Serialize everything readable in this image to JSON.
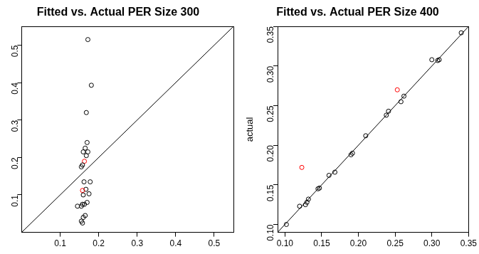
{
  "chart_data": [
    {
      "type": "scatter",
      "title": "Fitted vs. Actual PER Size 300",
      "xlim": [
        0,
        0.55
      ],
      "ylim": [
        0,
        0.55
      ],
      "xticks": [
        0.1,
        0.2,
        0.3,
        0.4,
        0.5
      ],
      "yticks": [
        0.1,
        0.2,
        0.3,
        0.4,
        0.5
      ],
      "grid": false,
      "series": [
        {
          "type": "scatter",
          "marker": "open_circle",
          "x": [
            0.172,
            0.181,
            0.168,
            0.17,
            0.165,
            0.172,
            0.16,
            0.168,
            0.163,
            0.155,
            0.158,
            0.178,
            0.162,
            0.167,
            0.158,
            0.175,
            0.16,
            0.17,
            0.158,
            0.163,
            0.145,
            0.155,
            0.165,
            0.16,
            0.155,
            0.158
          ],
          "values": [
            0.515,
            0.393,
            0.32,
            0.24,
            0.225,
            0.215,
            0.215,
            0.205,
            0.19,
            0.175,
            0.18,
            0.135,
            0.135,
            0.115,
            0.112,
            0.103,
            0.1,
            0.08,
            0.075,
            0.075,
            0.07,
            0.07,
            0.045,
            0.04,
            0.03,
            0.025
          ],
          "colors": [
            "#000000",
            "#000000",
            "#000000",
            "#000000",
            "#000000",
            "#000000",
            "#000000",
            "#000000",
            "#ff0000",
            "#000000",
            "#000000",
            "#000000",
            "#000000",
            "#000000",
            "#ff0000",
            "#000000",
            "#000000",
            "#000000",
            "#000000",
            "#000000",
            "#000000",
            "#000000",
            "#000000",
            "#000000",
            "#000000",
            "#000000"
          ]
        },
        {
          "type": "line",
          "color": "#000000",
          "line_style": "solid",
          "x": [
            0,
            0.55
          ],
          "values": [
            0,
            0.55
          ]
        }
      ]
    },
    {
      "type": "scatter",
      "title": "Fitted vs. Actual PER Size 400",
      "y_label": "actual",
      "xlim": [
        0.09,
        0.35
      ],
      "ylim": [
        0.09,
        0.35
      ],
      "xticks": [
        {
          "value": 0.1,
          "label": "0.10"
        },
        {
          "value": 0.15,
          "label": "0.15"
        },
        {
          "value": 0.2,
          "label": "0.20"
        },
        {
          "value": 0.25,
          "label": "0.25"
        },
        {
          "value": 0.3,
          "label": "0.30"
        },
        {
          "value": 0.35,
          "label": "0.35"
        }
      ],
      "yticks": [
        {
          "value": 0.1,
          "label": "0.10"
        },
        {
          "value": 0.15,
          "label": "0.15"
        },
        {
          "value": 0.2,
          "label": "0.20"
        },
        {
          "value": 0.25,
          "label": "0.25"
        },
        {
          "value": 0.3,
          "label": "0.30"
        },
        {
          "value": 0.35,
          "label": "0.35"
        }
      ],
      "grid": false,
      "series": [
        {
          "type": "scatter",
          "marker": "open_circle",
          "x": [
            0.102,
            0.12,
            0.128,
            0.13,
            0.132,
            0.145,
            0.147,
            0.16,
            0.168,
            0.19,
            0.192,
            0.21,
            0.238,
            0.241,
            0.258,
            0.262,
            0.3,
            0.308,
            0.31,
            0.34,
            0.123,
            0.253
          ],
          "values": [
            0.1,
            0.123,
            0.125,
            0.128,
            0.132,
            0.145,
            0.146,
            0.162,
            0.166,
            0.188,
            0.19,
            0.212,
            0.238,
            0.243,
            0.255,
            0.262,
            0.308,
            0.307,
            0.308,
            0.342,
            0.172,
            0.27
          ],
          "colors": [
            "#000000",
            "#000000",
            "#000000",
            "#000000",
            "#000000",
            "#000000",
            "#000000",
            "#000000",
            "#000000",
            "#000000",
            "#000000",
            "#000000",
            "#000000",
            "#000000",
            "#000000",
            "#000000",
            "#000000",
            "#000000",
            "#000000",
            "#000000",
            "#ff0000",
            "#ff0000"
          ]
        },
        {
          "type": "line",
          "color": "#000000",
          "line_style": "solid",
          "x": [
            0.09,
            0.35
          ],
          "values": [
            0.09,
            0.35
          ]
        }
      ]
    }
  ]
}
